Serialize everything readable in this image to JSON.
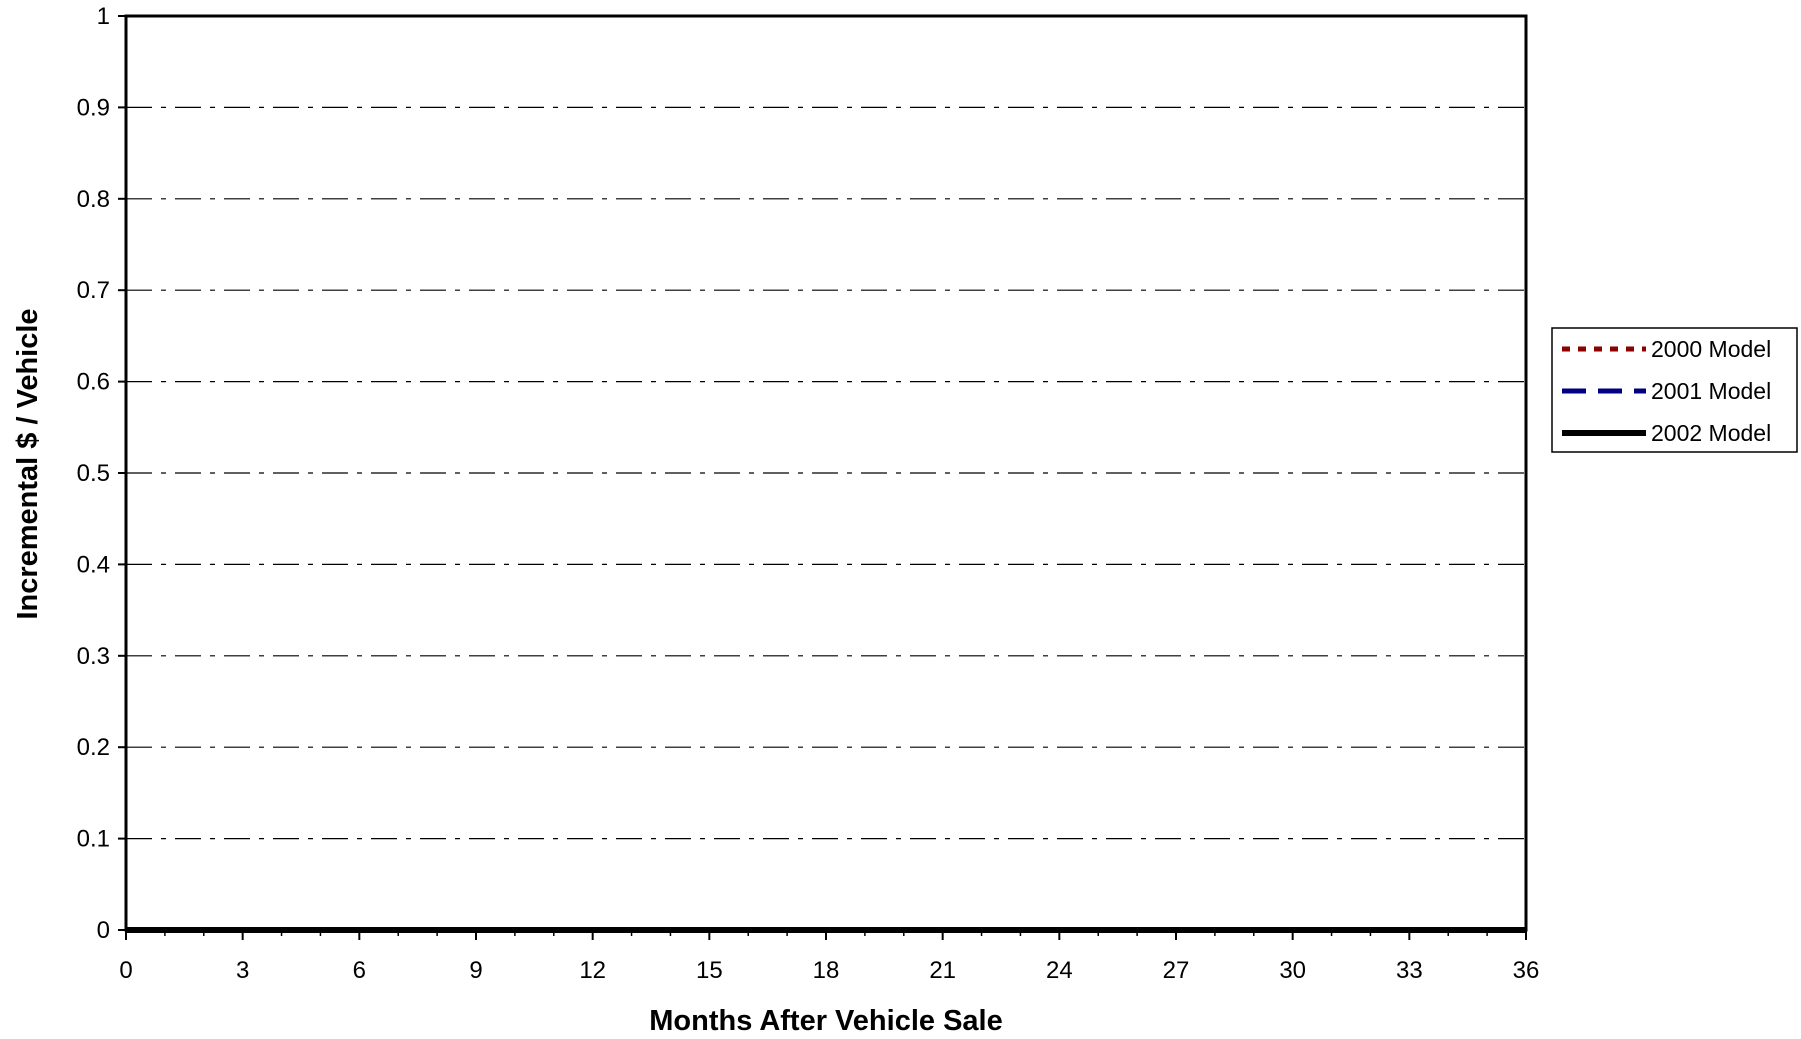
{
  "chart_data": {
    "type": "line",
    "title": "",
    "xlabel": "Months After Vehicle Sale",
    "ylabel": "Incremental $ / Vehicle",
    "xlim": [
      0,
      36
    ],
    "ylim": [
      0,
      1
    ],
    "x_ticks": [
      0,
      3,
      6,
      9,
      12,
      15,
      18,
      21,
      24,
      27,
      30,
      33,
      36
    ],
    "x_tick_labels": [
      "0",
      "3",
      "6",
      "9",
      "12",
      "15",
      "18",
      "21",
      "24",
      "27",
      "30",
      "33",
      "36"
    ],
    "x_minor_step": 1,
    "y_ticks": [
      0,
      0.1,
      0.2,
      0.3,
      0.4,
      0.5,
      0.6,
      0.7,
      0.8,
      0.9,
      1
    ],
    "y_tick_labels": [
      "0",
      "0.1",
      "0.2",
      "0.3",
      "0.4",
      "0.5",
      "0.6",
      "0.7",
      "0.8",
      "0.9",
      "1"
    ],
    "grid": "horizontal dash-dot",
    "legend_position": "right",
    "x": [
      0,
      1,
      2,
      3,
      4,
      5,
      6,
      7,
      8,
      9,
      10,
      11,
      12,
      13,
      14,
      15,
      16,
      17,
      18,
      19,
      20,
      21,
      22,
      23,
      24,
      25,
      26,
      27,
      28,
      29,
      30,
      31,
      32,
      33,
      34,
      35,
      36
    ],
    "series": [
      {
        "name": "2000 Model",
        "color": "#8b0000",
        "line_style": "dotted",
        "values": [
          0,
          0,
          0,
          0,
          0,
          0,
          0,
          0,
          0,
          0,
          0,
          0,
          0,
          0,
          0,
          0,
          0,
          0,
          0,
          0,
          0,
          0,
          0,
          0,
          0,
          0,
          0,
          0,
          0,
          0,
          0,
          0,
          0,
          0,
          0,
          0,
          0
        ]
      },
      {
        "name": "2001 Model",
        "color": "#000080",
        "line_style": "dashed",
        "values": [
          0,
          0,
          0,
          0,
          0,
          0,
          0,
          0,
          0,
          0,
          0,
          0,
          0,
          0,
          0,
          0,
          0,
          0,
          0,
          0,
          0,
          0,
          0,
          0,
          0,
          0,
          0,
          0,
          0,
          0,
          0,
          0,
          0,
          0,
          0,
          0,
          0
        ]
      },
      {
        "name": "2002 Model",
        "color": "#000000",
        "line_style": "solid",
        "values": [
          0,
          0,
          0,
          0,
          0,
          0,
          0,
          0,
          0,
          0,
          0,
          0,
          0,
          0,
          0,
          0,
          0,
          0,
          0,
          0,
          0,
          0,
          0,
          0,
          0,
          0,
          0,
          0,
          0,
          0,
          0,
          0,
          0,
          0,
          0,
          0,
          0
        ]
      }
    ]
  }
}
